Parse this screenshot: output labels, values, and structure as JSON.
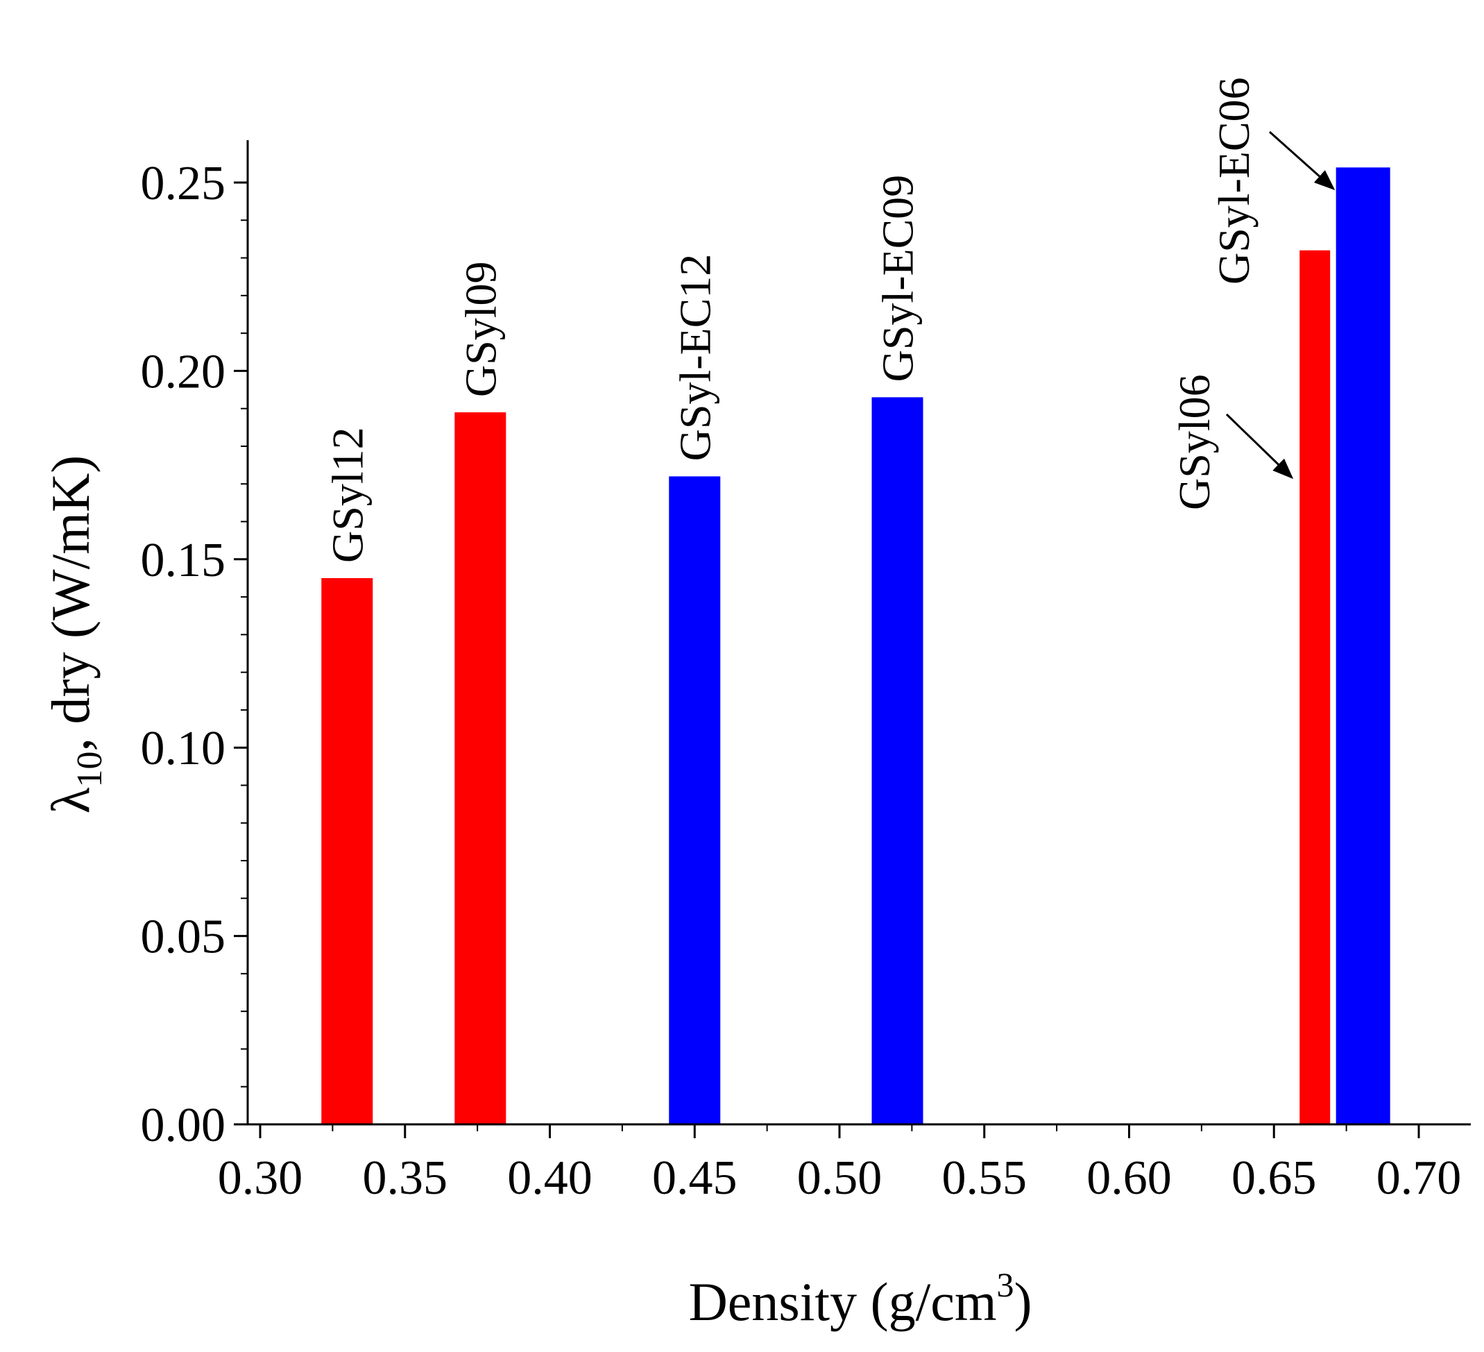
{
  "chart_data": {
    "type": "bar",
    "xlabel": "Density (g/cm",
    "xlabel_superscript": "3",
    "xlabel_close": ")",
    "ylabel_symbol": "λ",
    "ylabel_subscript": "10",
    "ylabel_rest": ", dry (W/mK)",
    "xlim": [
      0.3,
      0.7
    ],
    "ylim": [
      0.0,
      0.26
    ],
    "x_ticks": [
      "0.30",
      "0.35",
      "0.40",
      "0.45",
      "0.50",
      "0.55",
      "0.60",
      "0.65",
      "0.70"
    ],
    "y_ticks": [
      "0.00",
      "0.05",
      "0.10",
      "0.15",
      "0.20",
      "0.25"
    ],
    "bars": [
      {
        "label": "GSyl12",
        "x": 0.33,
        "value": 0.145,
        "color": "#ff0000",
        "series": "red"
      },
      {
        "label": "GSyl09",
        "x": 0.376,
        "value": 0.189,
        "color": "#ff0000",
        "series": "red"
      },
      {
        "label": "GSyl-EC12",
        "x": 0.45,
        "value": 0.172,
        "color": "#0000ff",
        "series": "blue"
      },
      {
        "label": "GSyl-EC09",
        "x": 0.52,
        "value": 0.193,
        "color": "#0000ff",
        "series": "blue"
      },
      {
        "label": "GSyl06",
        "x": 0.667,
        "value": 0.232,
        "color": "#ff0000",
        "series": "red"
      },
      {
        "label": "GSyl-EC06",
        "x": 0.681,
        "value": 0.254,
        "color": "#0000ff",
        "series": "blue"
      }
    ]
  }
}
